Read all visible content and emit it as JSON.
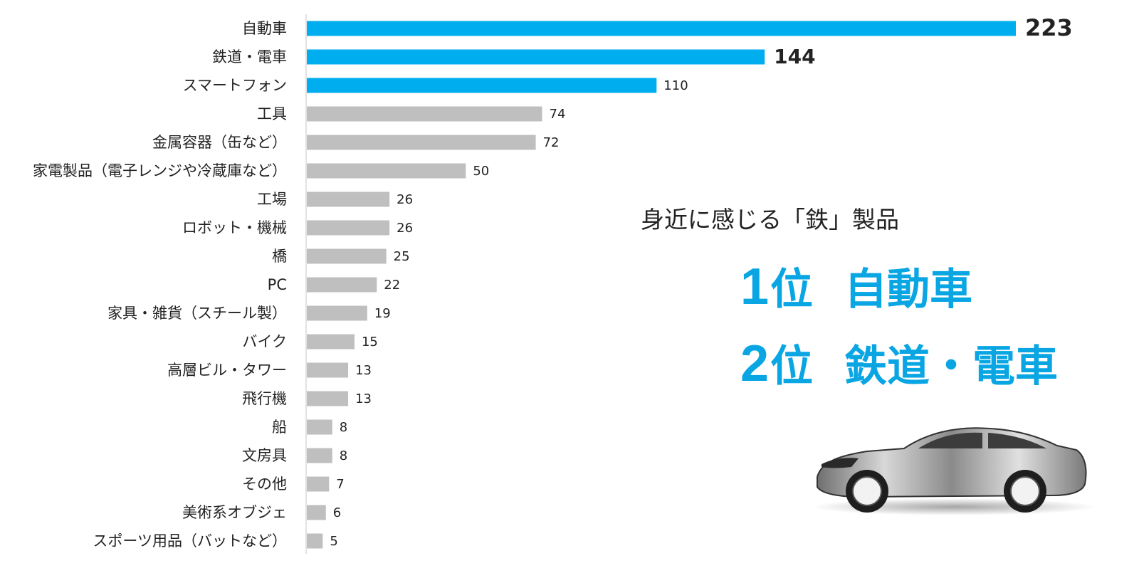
{
  "headline": "身近に感じる「鉄」製品",
  "ranks": [
    {
      "rank": "1",
      "unit": "位",
      "item": "自動車"
    },
    {
      "rank": "2",
      "unit": "位",
      "item": "鉄道・電車"
    }
  ],
  "colors": {
    "highlight": "#00aeef",
    "normal": "#bfbfbf",
    "axis": "#d9d9d9",
    "rank_text": "#09a6e3"
  },
  "illustration": "car-icon",
  "chart_data": {
    "type": "bar",
    "orientation": "horizontal",
    "categories": [
      "自動車",
      "鉄道・電車",
      "スマートフォン",
      "工具",
      "金属容器（缶など）",
      "家電製品（電子レンジや冷蔵庫など）",
      "工場",
      "ロボット・機械",
      "橋",
      "PC",
      "家具・雑貨（スチール製）",
      "バイク",
      "高層ビル・タワー",
      "飛行機",
      "船",
      "文房具",
      "その他",
      "美術系オブジェ",
      "スポーツ用品（バットなど）"
    ],
    "values": [
      223,
      144,
      110,
      74,
      72,
      50,
      26,
      26,
      25,
      22,
      19,
      15,
      13,
      13,
      8,
      8,
      7,
      6,
      5
    ],
    "value_labels": [
      "223",
      "144",
      "110",
      "74",
      "72",
      "50",
      "26",
      "26",
      "25",
      "22",
      "19",
      "15",
      "13",
      "13",
      "8",
      "8",
      "7",
      "6",
      "5"
    ],
    "highlighted": [
      true,
      true,
      true,
      false,
      false,
      false,
      false,
      false,
      false,
      false,
      false,
      false,
      false,
      false,
      false,
      false,
      false,
      false,
      false
    ],
    "bold_labels": [
      true,
      true,
      false,
      false,
      false,
      false,
      false,
      false,
      false,
      false,
      false,
      false,
      false,
      false,
      false,
      false,
      false,
      false,
      false
    ],
    "xlim": [
      0,
      223
    ],
    "grid": false
  }
}
